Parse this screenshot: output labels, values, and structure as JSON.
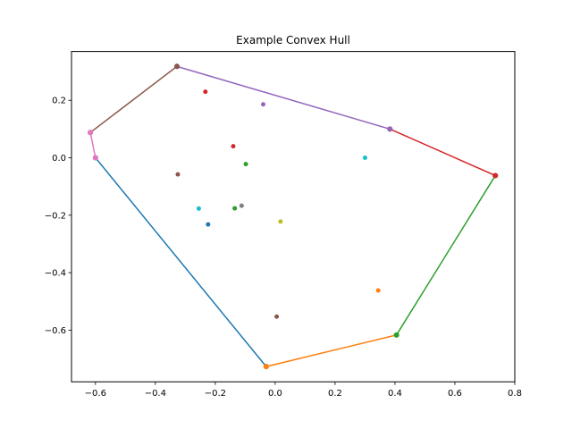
{
  "chart_data": {
    "type": "scatter",
    "title": "Example Convex Hull",
    "xlabel": "",
    "ylabel": "",
    "xlim": [
      -0.68,
      0.8
    ],
    "ylim": [
      -0.78,
      0.37
    ],
    "xticks": [
      -0.6,
      -0.4,
      -0.2,
      0.0,
      0.2,
      0.4,
      0.6,
      0.8
    ],
    "xtick_labels": [
      "−0.6",
      "−0.4",
      "−0.2",
      "0.0",
      "0.2",
      "0.4",
      "0.6",
      "0.8"
    ],
    "yticks": [
      -0.6,
      -0.4,
      -0.2,
      0.0,
      0.2
    ],
    "ytick_labels": [
      "−0.6",
      "−0.4",
      "−0.2",
      "0.0",
      "0.2"
    ],
    "grid": false,
    "points": [
      {
        "x": -0.224,
        "y": -0.232,
        "color": "#1f77b4"
      },
      {
        "x": 0.344,
        "y": -0.462,
        "color": "#ff7f0e"
      },
      {
        "x": -0.098,
        "y": -0.022,
        "color": "#2ca02c"
      },
      {
        "x": -0.233,
        "y": 0.23,
        "color": "#d62728"
      },
      {
        "x": -0.04,
        "y": 0.186,
        "color": "#9467bd"
      },
      {
        "x": 0.005,
        "y": -0.553,
        "color": "#8c564b"
      },
      {
        "x": 0.3,
        "y": 0.0,
        "color": "#17becf"
      },
      {
        "x": -0.112,
        "y": -0.167,
        "color": "#7f7f7f"
      },
      {
        "x": 0.018,
        "y": -0.222,
        "color": "#bcbd22"
      },
      {
        "x": -0.14,
        "y": 0.04,
        "color": "#d62728"
      },
      {
        "x": -0.325,
        "y": -0.058,
        "color": "#8c564b"
      },
      {
        "x": -0.255,
        "y": -0.177,
        "color": "#17becf"
      },
      {
        "x": -0.135,
        "y": -0.176,
        "color": "#2ca02c"
      }
    ],
    "hull_edges": [
      {
        "from": [
          -0.6,
          0.0
        ],
        "to": [
          -0.03,
          -0.727
        ],
        "color": "#1f77b4"
      },
      {
        "from": [
          -0.03,
          -0.727
        ],
        "to": [
          0.405,
          -0.617
        ],
        "color": "#ff7f0e"
      },
      {
        "from": [
          0.405,
          -0.617
        ],
        "to": [
          0.735,
          -0.062
        ],
        "color": "#2ca02c"
      },
      {
        "from": [
          0.735,
          -0.062
        ],
        "to": [
          0.383,
          0.1
        ],
        "color": "#d62728"
      },
      {
        "from": [
          0.383,
          0.1
        ],
        "to": [
          -0.328,
          0.318
        ],
        "color": "#9467bd"
      },
      {
        "from": [
          -0.328,
          0.318
        ],
        "to": [
          -0.617,
          0.088
        ],
        "color": "#8c564b"
      },
      {
        "from": [
          -0.617,
          0.088
        ],
        "to": [
          -0.6,
          0.0
        ],
        "color": "#e377c2"
      }
    ]
  }
}
